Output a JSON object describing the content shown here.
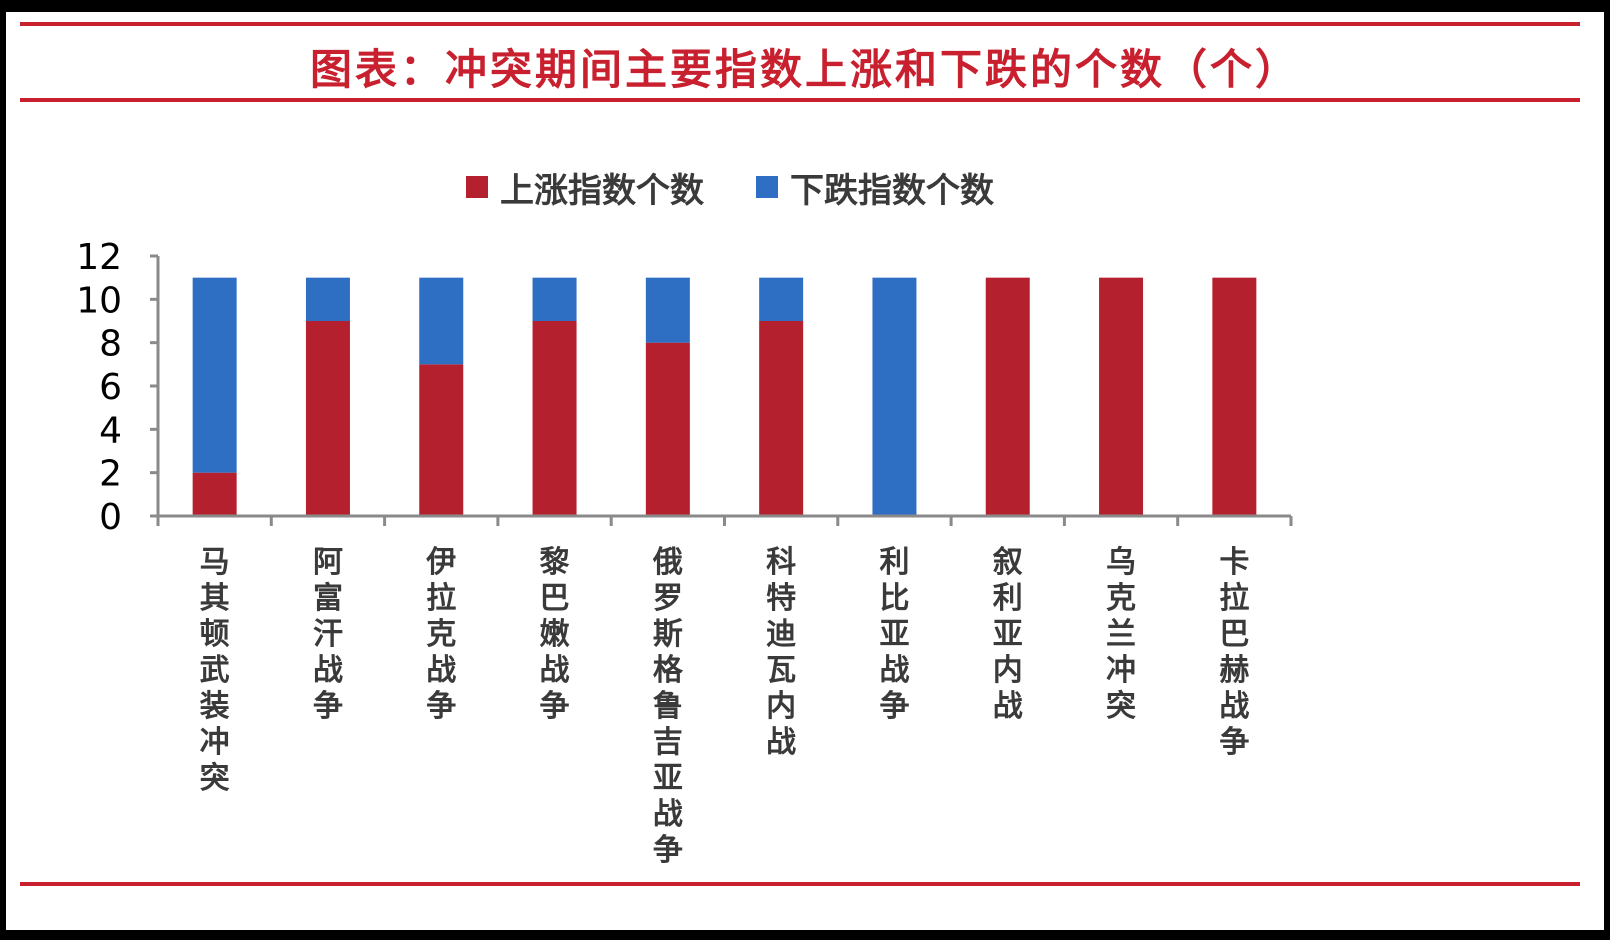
{
  "title": "图表：冲突期间主要指数上涨和下跌的个数（个）",
  "chart_data": {
    "type": "bar",
    "stacked": true,
    "categories": [
      "马其顿武装冲突",
      "阿富汗战争",
      "伊拉克战争",
      "黎巴嫩战争",
      "俄罗斯格鲁吉亚战争",
      "科特迪瓦内战",
      "利比亚战争",
      "叙利亚内战",
      "乌克兰冲突",
      "卡拉巴赫战争"
    ],
    "series": [
      {
        "name": "上涨指数个数",
        "color": "#b5202e",
        "values": [
          2,
          9,
          7,
          9,
          8,
          9,
          0,
          11,
          11,
          11
        ]
      },
      {
        "name": "下跌指数个数",
        "color": "#2e6fc4",
        "values": [
          9,
          2,
          4,
          2,
          3,
          2,
          11,
          0,
          0,
          0
        ]
      }
    ],
    "yticks": [
      "0",
      "2",
      "4",
      "6",
      "8",
      "10",
      "12"
    ],
    "ylim": [
      0,
      12
    ],
    "legend_position": "top-center",
    "grid": false
  },
  "colors": {
    "accent": "#c8202e"
  }
}
